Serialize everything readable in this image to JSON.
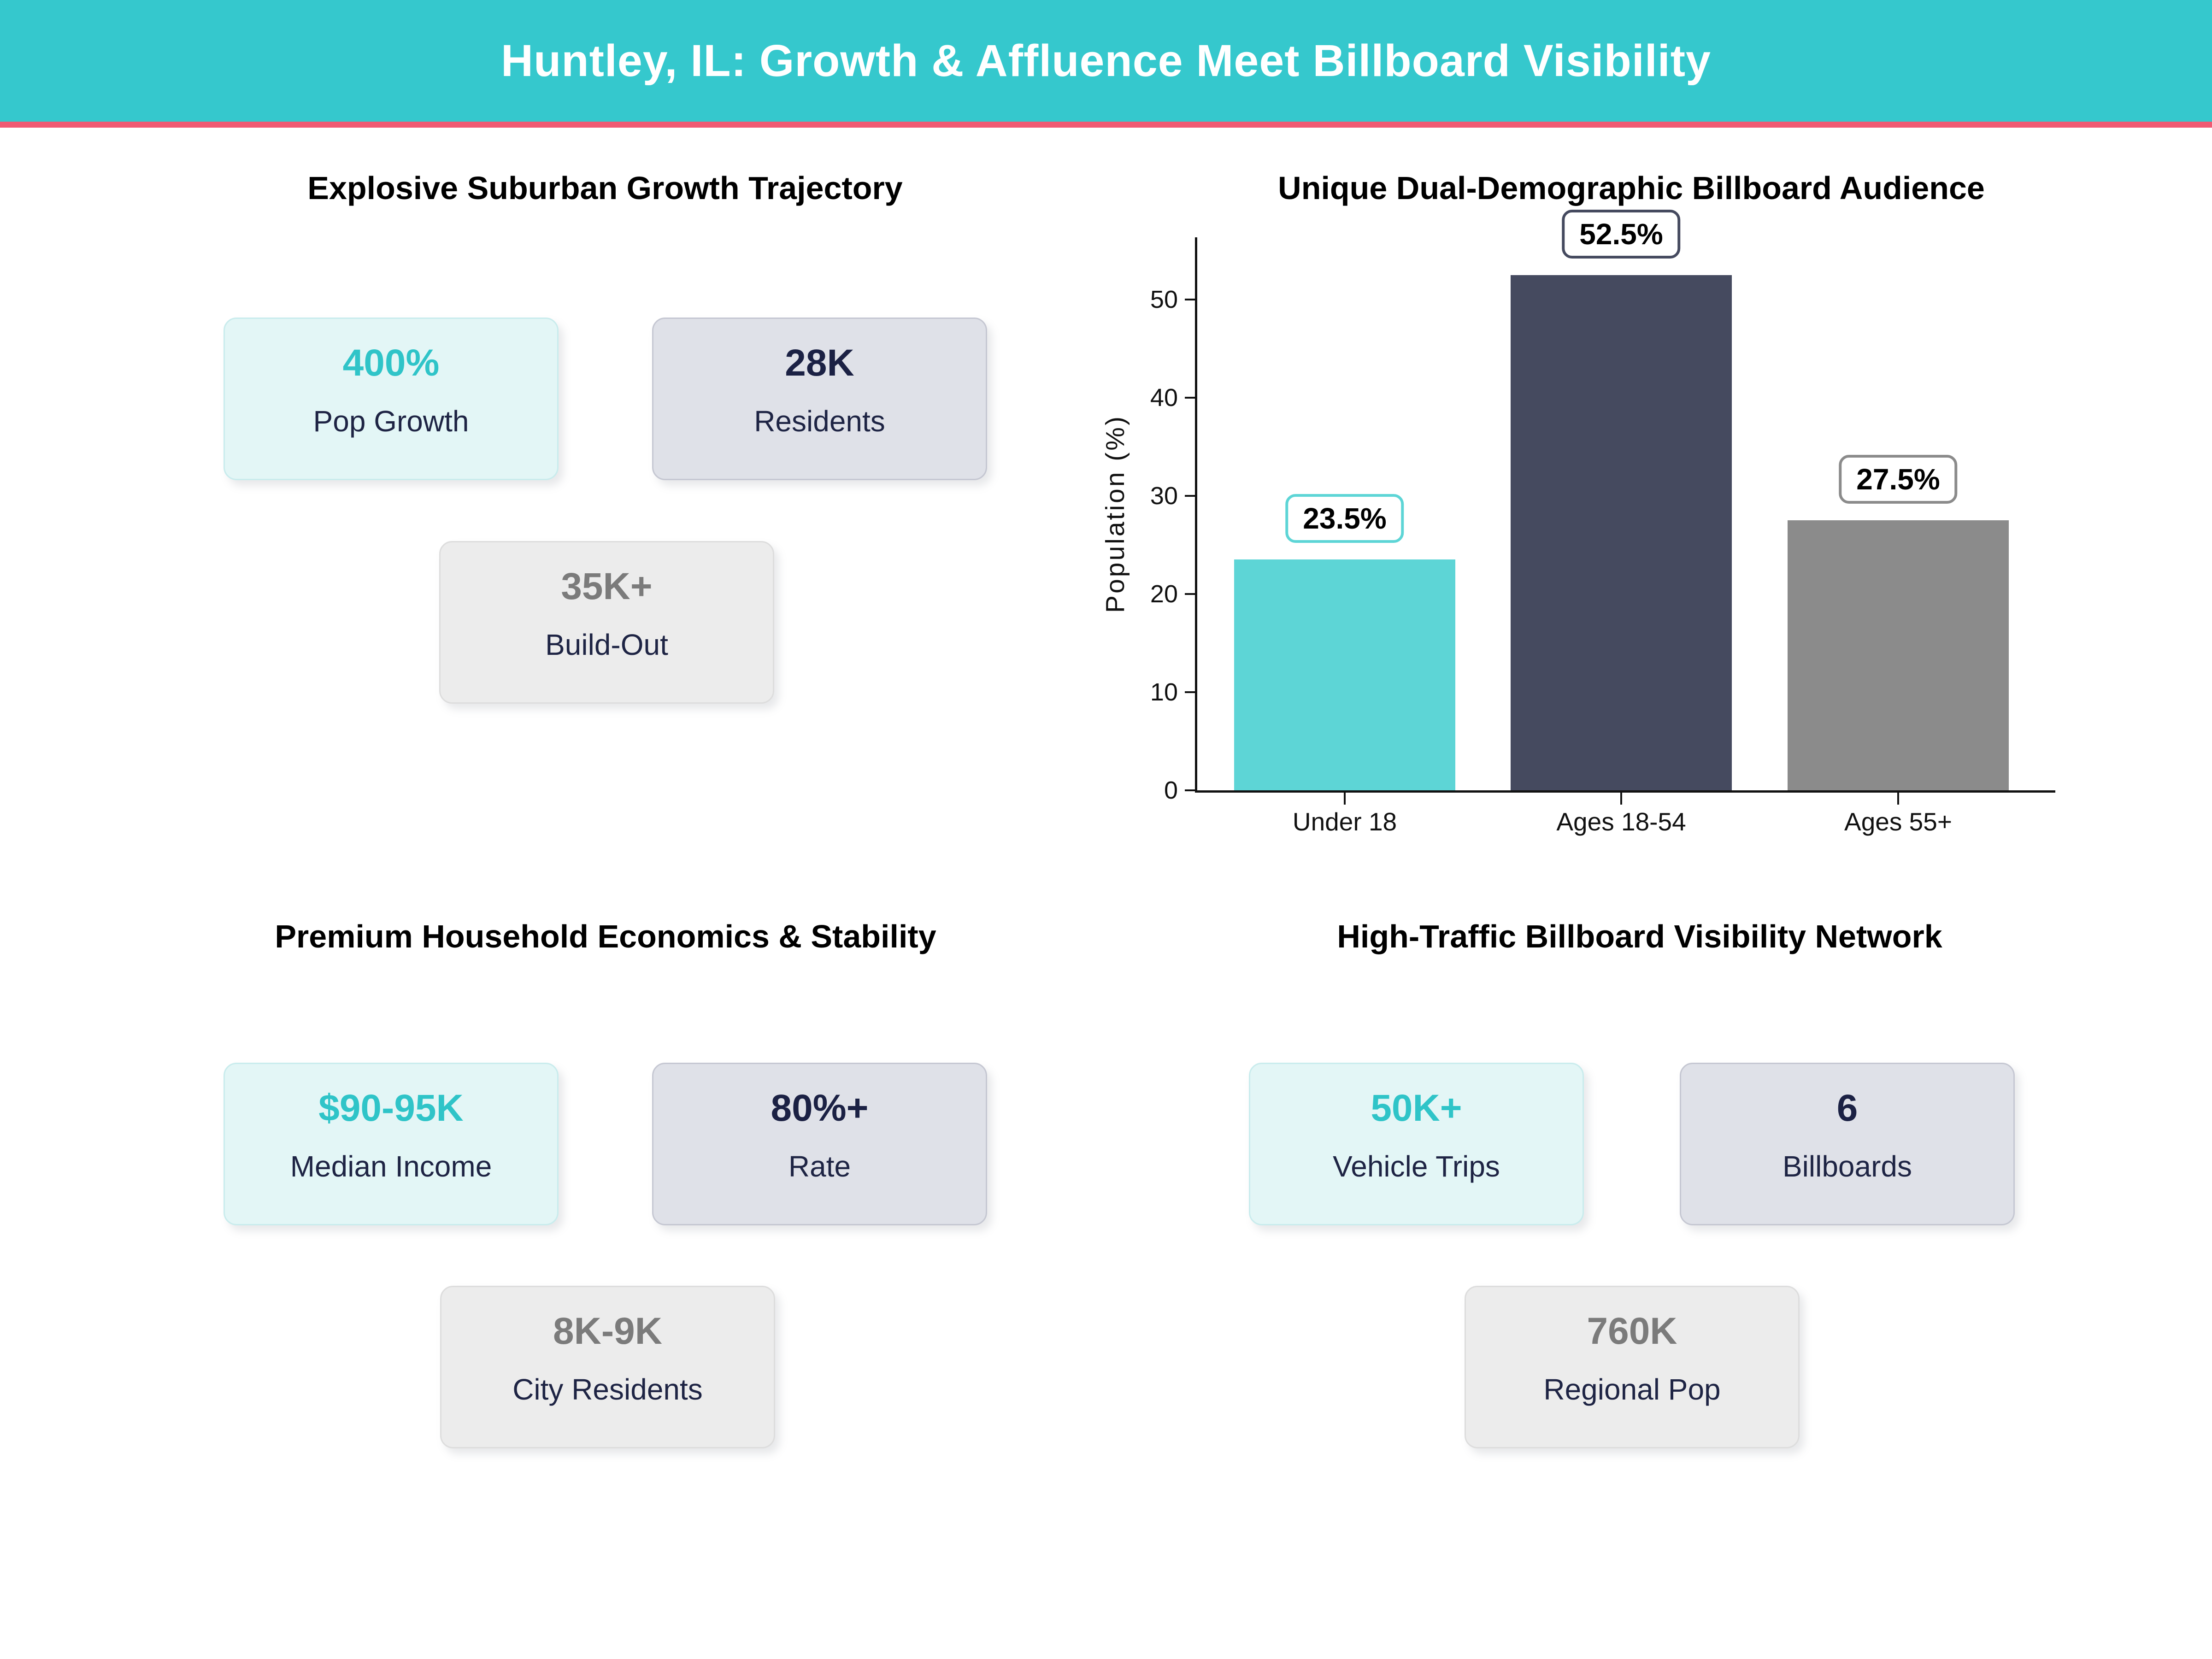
{
  "header": {
    "title": "Huntley, IL: Growth & Affluence Meet Billboard Visibility"
  },
  "palette": {
    "header_bg": "#35c8cd",
    "header_accent": "#f05a73",
    "teal": "#2fc4c8",
    "navy": "#1b2144",
    "gray_value": "#7b7b7b",
    "label_navy": "#1e2444",
    "bar_teal": "#5dd5d6",
    "bar_navy": "#454a5f",
    "bar_gray": "#8b8b8b"
  },
  "quadrants": {
    "growth": {
      "title": "Explosive Suburban Growth Trajectory",
      "cards": [
        {
          "value": "400%",
          "label": "Pop Growth",
          "variant": "accent"
        },
        {
          "value": "28K",
          "label": "Residents",
          "variant": "dark"
        },
        {
          "value": "35K+",
          "label": "Build-Out",
          "variant": "muted"
        }
      ]
    },
    "economics": {
      "title": "Premium Household Economics & Stability",
      "cards": [
        {
          "value": "$90-95K",
          "label": "Median Income",
          "variant": "accent"
        },
        {
          "value": "80%+",
          "label": "Rate",
          "variant": "dark"
        },
        {
          "value": "8K-9K",
          "label": "City Residents",
          "variant": "muted"
        }
      ]
    },
    "network": {
      "title": "High-Traffic Billboard Visibility Network",
      "cards": [
        {
          "value": "50K+",
          "label": "Vehicle Trips",
          "variant": "accent"
        },
        {
          "value": "6",
          "label": "Billboards",
          "variant": "dark"
        },
        {
          "value": "760K",
          "label": "Regional Pop",
          "variant": "muted"
        }
      ]
    }
  },
  "chart_data": {
    "type": "bar",
    "title": "Unique Dual-Demographic Billboard Audience",
    "categories": [
      "Under 18",
      "Ages 18-54",
      "Ages 55+"
    ],
    "values": [
      23.5,
      52.5,
      27.5
    ],
    "data_labels": [
      "23.5%",
      "52.5%",
      "27.5%"
    ],
    "bar_colors": [
      "#5dd5d6",
      "#454a5f",
      "#8b8b8b"
    ],
    "ylabel": "Population (%)",
    "yticks": [
      0,
      10,
      20,
      30,
      40,
      50
    ],
    "ylim": [
      0,
      56
    ],
    "grid": false,
    "legend": null
  }
}
